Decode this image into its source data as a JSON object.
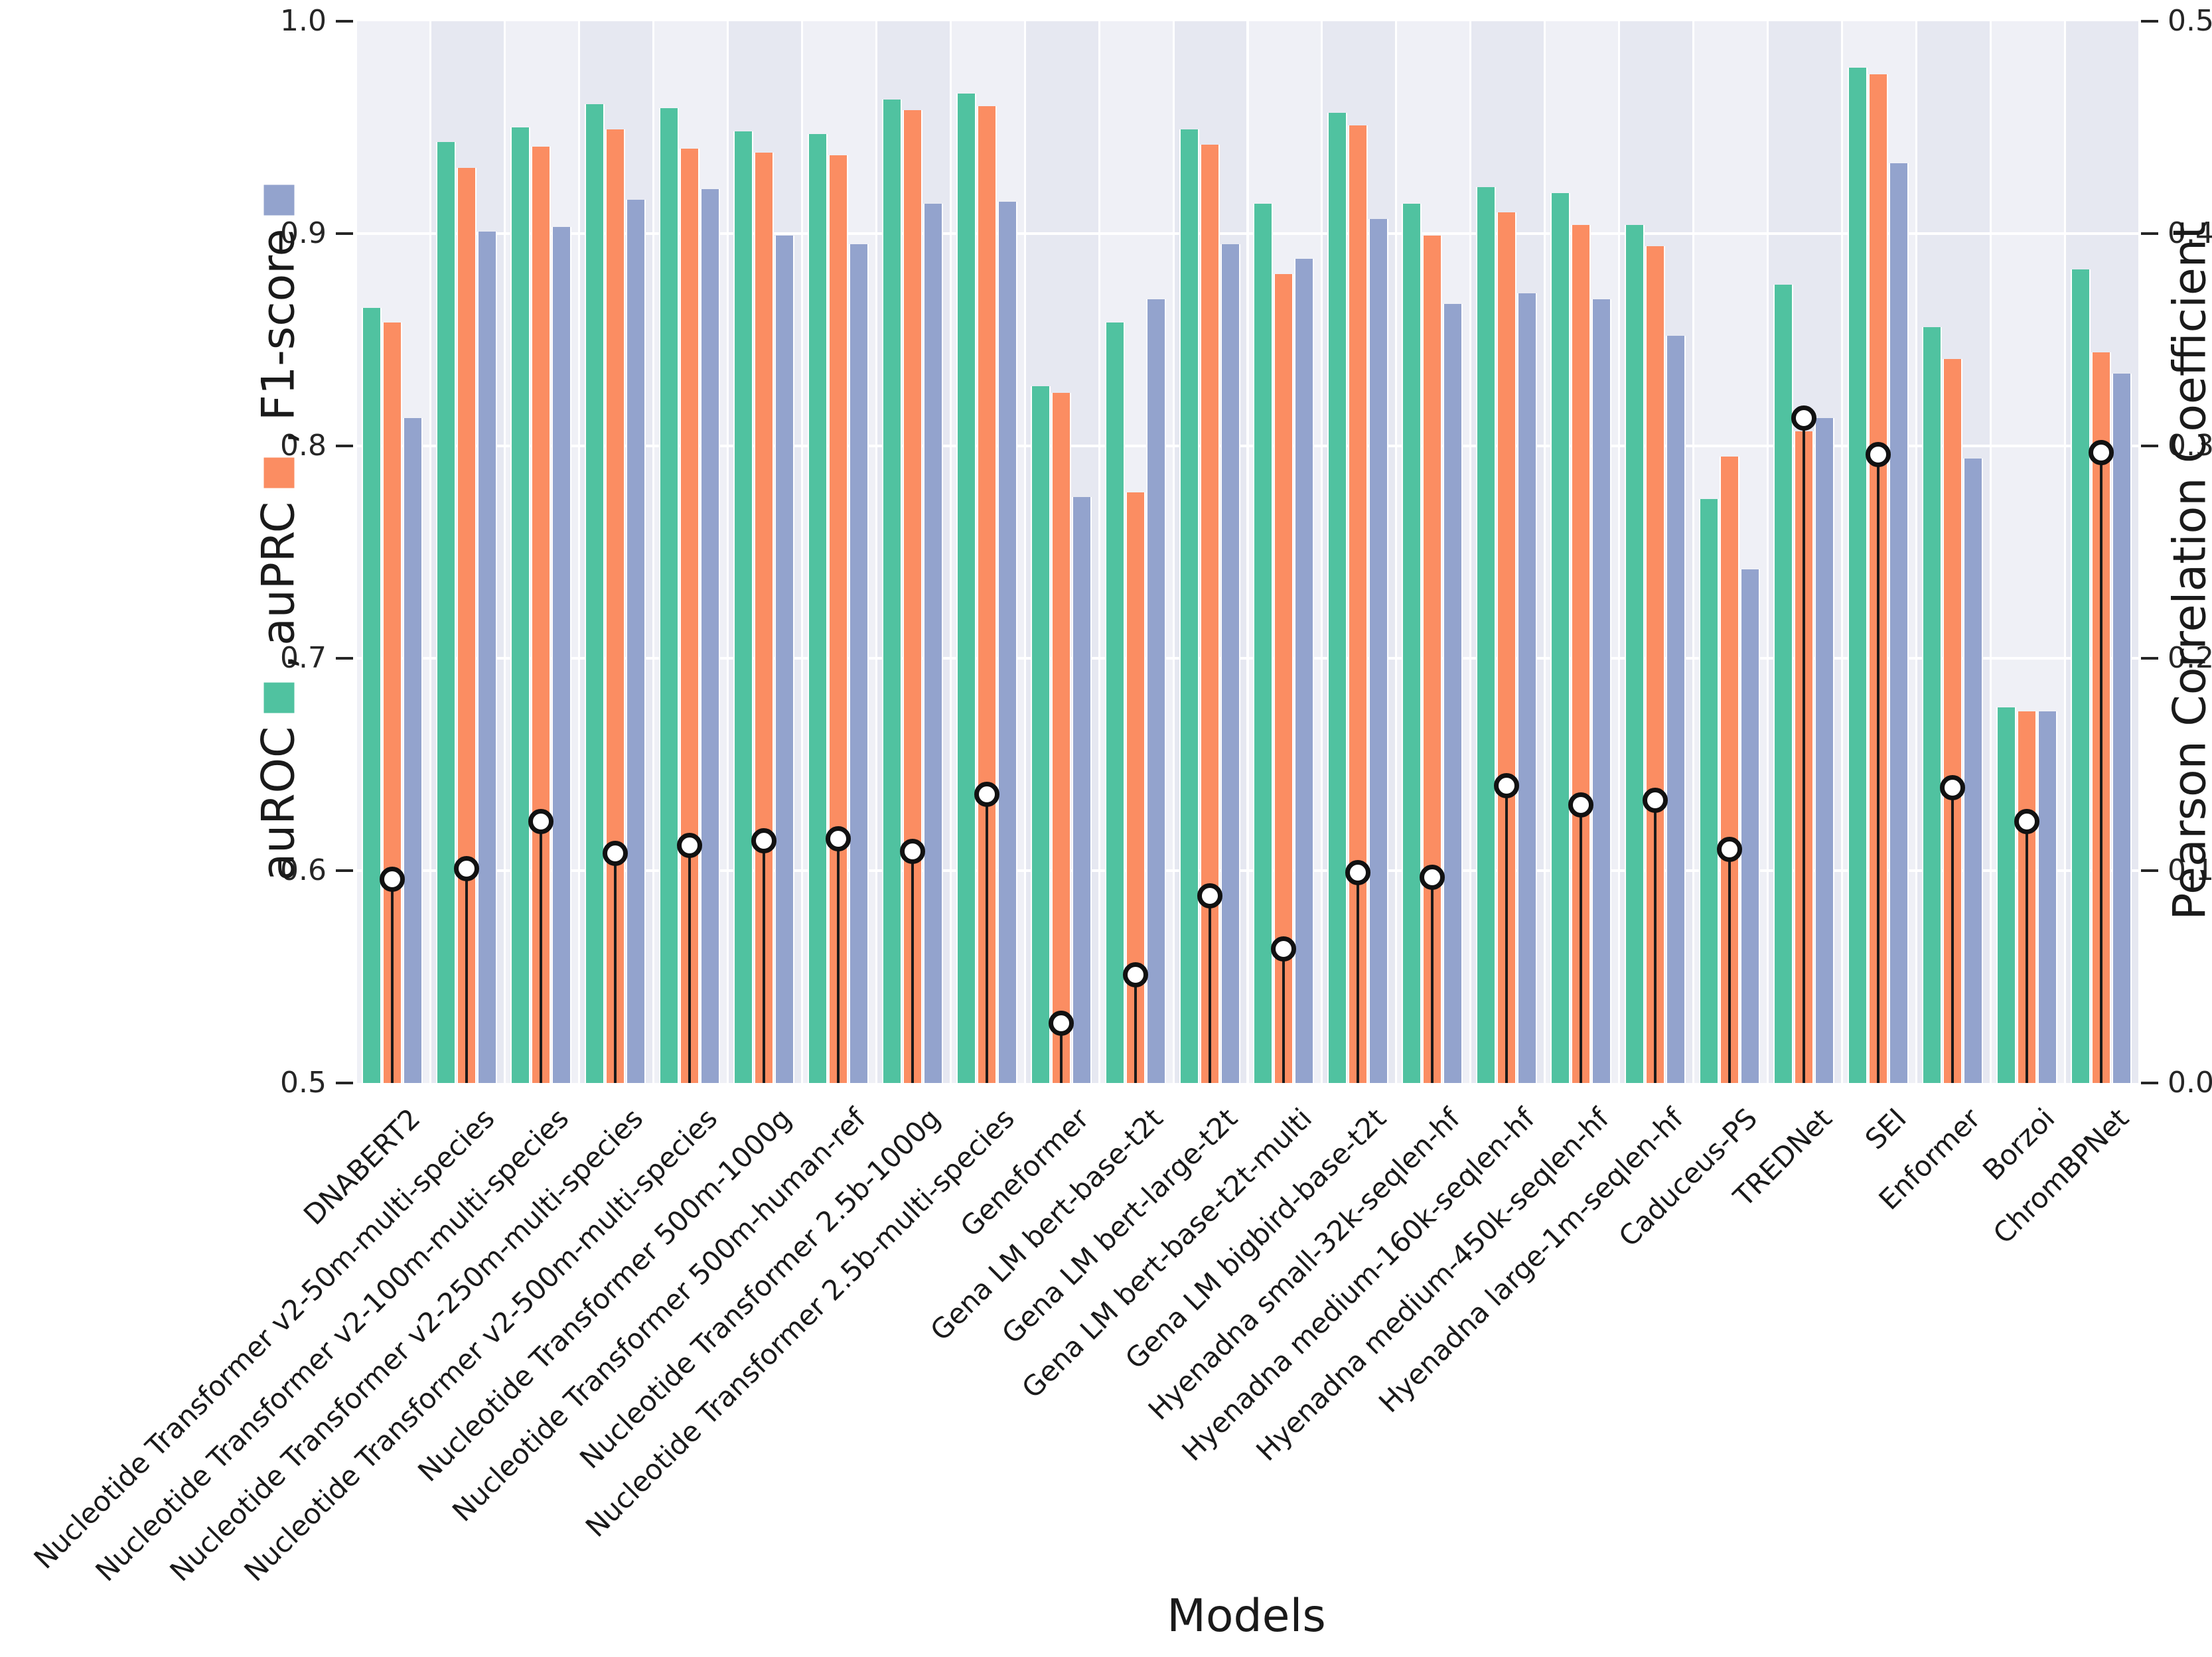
{
  "chart_data": {
    "type": "bar",
    "title": "",
    "xlabel": "Models",
    "left_axis": {
      "label_parts": [
        "auROC",
        "auPRC",
        "F1-score"
      ],
      "ticks": [
        "1.0",
        "0.9",
        "0.8",
        "0.7",
        "0.6",
        "0.5"
      ],
      "ylim": [
        0.5,
        1.0
      ],
      "grid": true
    },
    "right_axis": {
      "label": "Pearson Correlation Coefficient",
      "ticks": [
        "0.5",
        "0.4",
        "0.3",
        "0.2",
        "0.1",
        "0.0"
      ],
      "ylim": [
        0.0,
        0.5
      ]
    },
    "legend": {
      "position": "left-vertical",
      "entries": [
        {
          "label": "auROC",
          "color": "#50c2a0"
        },
        {
          "label": "auPRC",
          "color": "#fb8d62"
        },
        {
          "label": "F1-score",
          "color": "#93a3cd"
        }
      ]
    },
    "series_names": [
      "auROC",
      "auPRC",
      "F1-score",
      "Pearson Correlation Coefficient"
    ],
    "models": [
      {
        "name": "DNABERT2",
        "auroc": 0.865,
        "auprc": 0.858,
        "f1": 0.813,
        "pearson": 0.096
      },
      {
        "name": "Nucleotide Transformer v2-50m-multi-species",
        "auroc": 0.943,
        "auprc": 0.931,
        "f1": 0.901,
        "pearson": 0.101
      },
      {
        "name": "Nucleotide Transformer v2-100m-multi-species",
        "auroc": 0.95,
        "auprc": 0.941,
        "f1": 0.903,
        "pearson": 0.123
      },
      {
        "name": "Nucleotide Transformer v2-250m-multi-species",
        "auroc": 0.961,
        "auprc": 0.949,
        "f1": 0.916,
        "pearson": 0.108
      },
      {
        "name": "Nucleotide Transformer v2-500m-multi-species",
        "auroc": 0.959,
        "auprc": 0.94,
        "f1": 0.921,
        "pearson": 0.112
      },
      {
        "name": "Nucleotide Transformer 500m-1000g",
        "auroc": 0.948,
        "auprc": 0.938,
        "f1": 0.899,
        "pearson": 0.114
      },
      {
        "name": "Nucleotide Transformer 500m-human-ref",
        "auroc": 0.947,
        "auprc": 0.937,
        "f1": 0.895,
        "pearson": 0.115
      },
      {
        "name": "Nucleotide Transformer 2.5b-1000g",
        "auroc": 0.963,
        "auprc": 0.958,
        "f1": 0.914,
        "pearson": 0.109
      },
      {
        "name": "Nucleotide Transformer 2.5b-multi-species",
        "auroc": 0.966,
        "auprc": 0.96,
        "f1": 0.915,
        "pearson": 0.136
      },
      {
        "name": "Geneformer",
        "auroc": 0.828,
        "auprc": 0.825,
        "f1": 0.776,
        "pearson": 0.028
      },
      {
        "name": "Gena LM bert-base-t2t",
        "auroc": 0.858,
        "auprc": 0.778,
        "f1": 0.869,
        "pearson": 0.051
      },
      {
        "name": "Gena LM bert-large-t2t",
        "auroc": 0.949,
        "auprc": 0.942,
        "f1": 0.895,
        "pearson": 0.088
      },
      {
        "name": "Gena LM bert-base-t2t-multi",
        "auroc": 0.914,
        "auprc": 0.881,
        "f1": 0.888,
        "pearson": 0.063
      },
      {
        "name": "Gena LM bigbird-base-t2t",
        "auroc": 0.957,
        "auprc": 0.951,
        "f1": 0.907,
        "pearson": 0.099
      },
      {
        "name": "Hyenadna small-32k-seqlen-hf",
        "auroc": 0.914,
        "auprc": 0.899,
        "f1": 0.867,
        "pearson": 0.097
      },
      {
        "name": "Hyenadna medium-160k-seqlen-hf",
        "auroc": 0.922,
        "auprc": 0.91,
        "f1": 0.872,
        "pearson": 0.14
      },
      {
        "name": "Hyenadna medium-450k-seqlen-hf",
        "auroc": 0.919,
        "auprc": 0.904,
        "f1": 0.869,
        "pearson": 0.131
      },
      {
        "name": "Hyenadna large-1m-seqlen-hf",
        "auroc": 0.904,
        "auprc": 0.894,
        "f1": 0.852,
        "pearson": 0.133
      },
      {
        "name": "Caduceus-PS",
        "auroc": 0.775,
        "auprc": 0.795,
        "f1": 0.742,
        "pearson": 0.11
      },
      {
        "name": "TREDNet",
        "auroc": 0.876,
        "auprc": 0.807,
        "f1": 0.813,
        "pearson": 0.313
      },
      {
        "name": "SEI",
        "auroc": 0.978,
        "auprc": 0.975,
        "f1": 0.933,
        "pearson": 0.296
      },
      {
        "name": "Enformer",
        "auroc": 0.856,
        "auprc": 0.841,
        "f1": 0.794,
        "pearson": 0.139
      },
      {
        "name": "Borzoi",
        "auroc": 0.677,
        "auprc": 0.675,
        "f1": 0.675,
        "pearson": 0.123
      },
      {
        "name": "ChromBPNet",
        "auroc": 0.883,
        "auprc": 0.844,
        "f1": 0.834,
        "pearson": 0.297
      }
    ],
    "colors": {
      "auroc": "#50c2a0",
      "auprc": "#fb8d62",
      "f1": "#93a3cd",
      "marker_fill": "#ffffff",
      "marker_edge": "#111111",
      "stem": "#1a1a1a",
      "band_light": "#eff0f6",
      "band_dark": "#e6e8f1",
      "gridline": "#ffffff"
    }
  }
}
